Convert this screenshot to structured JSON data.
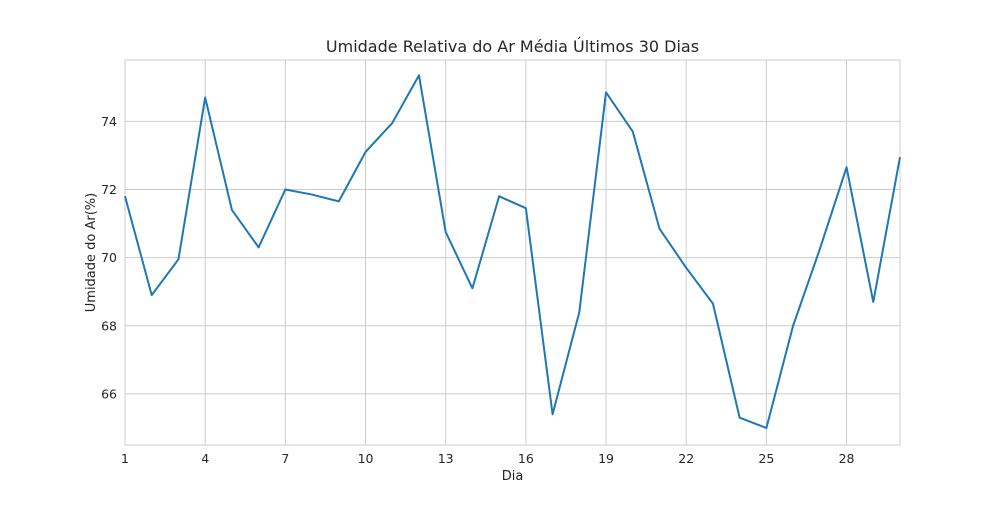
{
  "chart_data": {
    "type": "line",
    "title": "Umidade Relativa do Ar Média Últimos 30 Dias",
    "xlabel": "Dia",
    "ylabel": "Umidade do Ar(%)",
    "xlim": [
      1,
      30
    ],
    "ylim": [
      64.5,
      75.8
    ],
    "xticks": [
      1,
      4,
      7,
      10,
      13,
      16,
      19,
      22,
      25,
      28
    ],
    "yticks": [
      66,
      68,
      70,
      72,
      74
    ],
    "grid": true,
    "color": "#1f77b4",
    "x": [
      1,
      2,
      3,
      4,
      5,
      6,
      7,
      8,
      9,
      10,
      11,
      12,
      13,
      14,
      15,
      16,
      17,
      18,
      19,
      20,
      21,
      22,
      23,
      24,
      25,
      26,
      27,
      28,
      29,
      30
    ],
    "values": [
      71.8,
      68.9,
      69.95,
      74.7,
      71.4,
      70.3,
      72.0,
      71.85,
      71.65,
      73.1,
      73.95,
      75.35,
      70.75,
      69.1,
      71.8,
      71.45,
      65.4,
      68.4,
      74.85,
      73.7,
      70.85,
      69.7,
      68.65,
      65.3,
      65.0,
      68.0,
      70.25,
      72.65,
      68.7,
      72.95
    ]
  }
}
